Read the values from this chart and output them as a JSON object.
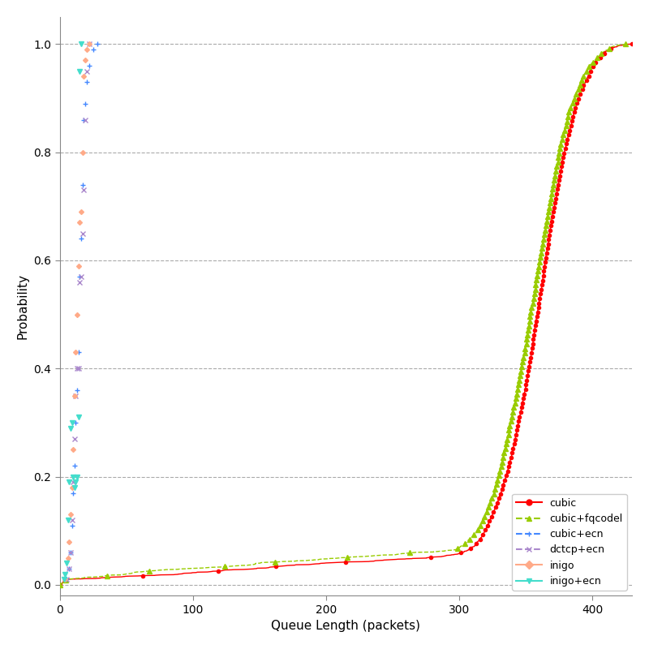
{
  "title": "",
  "xlabel": "Queue Length (packets)",
  "ylabel": "Probability",
  "xlim": [
    0,
    430
  ],
  "ylim": [
    -0.02,
    1.05
  ],
  "background_color": "#ffffff",
  "grid_color": "#aaaaaa",
  "series": {
    "cubic": {
      "color": "#ff0000",
      "marker": "o",
      "linestyle": "-",
      "markersize": 3,
      "linewidth": 1.0
    },
    "cubic+fqcodel": {
      "color": "#99cc00",
      "marker": "^",
      "linestyle": "--",
      "markersize": 4,
      "linewidth": 1.0
    },
    "cubic+ecn": {
      "color": "#4488ff",
      "marker": "+",
      "linestyle": "none",
      "markersize": 5,
      "linewidth": 0.8
    },
    "dctcp+ecn": {
      "color": "#aa88cc",
      "marker": "x",
      "linestyle": "none",
      "markersize": 4,
      "linewidth": 0.8
    },
    "inigo": {
      "color": "#ffaa88",
      "marker": "D",
      "linestyle": "none",
      "markersize": 3,
      "linewidth": 0.8
    },
    "inigo+ecn": {
      "color": "#44ddcc",
      "marker": "v",
      "linestyle": "none",
      "markersize": 4,
      "linewidth": 0.8
    }
  },
  "legend_loc": "lower right",
  "yticks": [
    0.0,
    0.2,
    0.4,
    0.6,
    0.8,
    1.0
  ],
  "xticks": [
    0,
    100,
    200,
    300,
    400
  ],
  "hlines": [
    0.0,
    0.2,
    0.4,
    0.6,
    0.8,
    1.0
  ],
  "cubic_ecn_x": [
    5,
    7,
    8,
    9,
    10,
    11,
    12,
    13,
    14,
    15,
    16,
    17,
    18,
    19,
    20,
    22,
    25,
    28
  ],
  "cubic_ecn_y": [
    0.01,
    0.03,
    0.06,
    0.11,
    0.17,
    0.22,
    0.3,
    0.36,
    0.43,
    0.57,
    0.64,
    0.74,
    0.86,
    0.89,
    0.93,
    0.96,
    0.99,
    1.0
  ],
  "dctcp_ecn_x": [
    5,
    7,
    8,
    9,
    10,
    11,
    12,
    13,
    14,
    15,
    16,
    17,
    18,
    19,
    20,
    22
  ],
  "dctcp_ecn_y": [
    0.01,
    0.03,
    0.06,
    0.12,
    0.19,
    0.27,
    0.35,
    0.4,
    0.4,
    0.56,
    0.57,
    0.65,
    0.73,
    0.86,
    0.95,
    1.0
  ],
  "inigo_x": [
    4,
    6,
    7,
    8,
    9,
    10,
    11,
    12,
    13,
    14,
    15,
    16,
    17,
    18,
    19,
    20,
    22
  ],
  "inigo_y": [
    0.01,
    0.05,
    0.08,
    0.13,
    0.18,
    0.25,
    0.35,
    0.43,
    0.5,
    0.59,
    0.67,
    0.69,
    0.8,
    0.94,
    0.97,
    0.99,
    1.0
  ],
  "inigo_ecn_x": [
    3,
    4,
    5,
    6,
    7,
    8,
    9,
    10,
    11,
    12,
    13,
    14,
    15,
    16
  ],
  "inigo_ecn_y": [
    0.01,
    0.02,
    0.04,
    0.12,
    0.19,
    0.29,
    0.3,
    0.2,
    0.18,
    0.19,
    0.2,
    0.31,
    0.95,
    1.0
  ]
}
